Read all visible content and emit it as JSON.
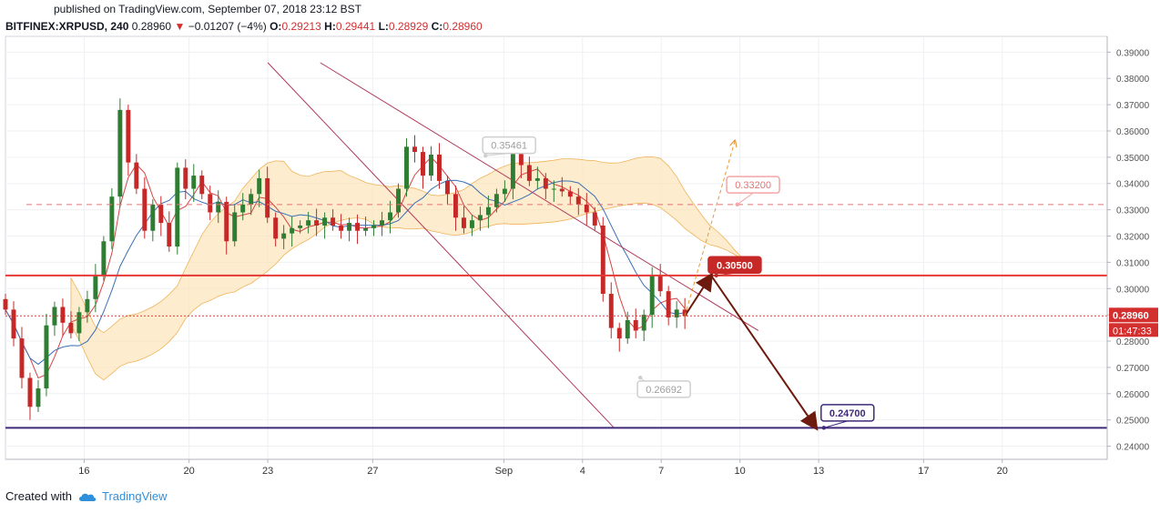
{
  "header": {
    "published": "published on TradingView.com, September 07, 2018 23:12 BST",
    "symbol": "BITFINEX:XRPUSD, 240",
    "last": "0.28960",
    "change": "−0.01207 (−4%)",
    "o_label": "O:",
    "o": "0.29213",
    "h_label": "H:",
    "h": "0.29441",
    "l_label": "L:",
    "l": "0.28929",
    "c_label": "C:",
    "c": "0.28960"
  },
  "footer": {
    "created_with": "Created with",
    "brand": "TradingView"
  },
  "colors": {
    "up": "#2e7d32",
    "down": "#c62828",
    "cloud": "#fce4b8",
    "red_line": "#e53935",
    "blue_line": "#3f2a7a",
    "arrow": "#6d1b0f",
    "channel": "#b03a5a"
  },
  "chart_data": {
    "type": "candlestick",
    "title": "BITFINEX:XRPUSD, 240",
    "ylim": [
      0.235,
      0.396
    ],
    "y_ticks": [
      "0.39000",
      "0.38000",
      "0.37000",
      "0.36000",
      "0.35000",
      "0.34000",
      "0.33000",
      "0.32000",
      "0.31000",
      "0.30000",
      "0.29000",
      "0.28000",
      "0.27000",
      "0.26000",
      "0.25000",
      "0.24000"
    ],
    "y_tick_values": [
      0.39,
      0.38,
      0.37,
      0.36,
      0.35,
      0.34,
      0.33,
      0.32,
      0.31,
      0.3,
      0.29,
      0.28,
      0.27,
      0.26,
      0.25,
      0.24
    ],
    "x_ticks": [
      "16",
      "20",
      "23",
      "27",
      "Sep",
      "4",
      "7",
      "10",
      "13",
      "17",
      "20"
    ],
    "x_tick_days": [
      16,
      20,
      23,
      27,
      32,
      35,
      38,
      41,
      44,
      48,
      51
    ],
    "day_range": [
      13.0,
      55.0
    ],
    "price_label": "0.28960",
    "countdown_label": "01:47:33",
    "levels": [
      {
        "name": "resistance",
        "value": 0.305,
        "label": "0.30500"
      },
      {
        "name": "support",
        "value": 0.247,
        "label": "0.24700"
      },
      {
        "name": "target",
        "value": 0.332,
        "label": "0.33200"
      },
      {
        "name": "current",
        "value": 0.2896,
        "label": "0.28960"
      }
    ],
    "annotations": [
      {
        "label": "0.35461",
        "day": 31.3,
        "value": 0.3546
      },
      {
        "label": "0.26692",
        "day": 37.2,
        "value": 0.2669
      }
    ],
    "projection_path": [
      [
        38.9,
        0.2896
      ],
      [
        39.9,
        0.305
      ],
      [
        43.9,
        0.247
      ]
    ],
    "alt_path": [
      [
        38.9,
        0.2896
      ],
      [
        40.8,
        0.356
      ]
    ],
    "channel_upper": [
      [
        25.0,
        0.386
      ],
      [
        41.7,
        0.284
      ]
    ],
    "channel_lower": [
      [
        23.0,
        0.386
      ],
      [
        36.2,
        0.247
      ]
    ],
    "close_series": [
      0.292,
      0.281,
      0.266,
      0.255,
      0.262,
      0.286,
      0.293,
      0.287,
      0.283,
      0.291,
      0.296,
      0.305,
      0.318,
      0.335,
      0.368,
      0.348,
      0.338,
      0.322,
      0.332,
      0.325,
      0.316,
      0.346,
      0.338,
      0.343,
      0.336,
      0.329,
      0.333,
      0.318,
      0.329,
      0.332,
      0.336,
      0.342,
      0.327,
      0.319,
      0.321,
      0.323,
      0.324,
      0.326,
      0.324,
      0.327,
      0.324,
      0.322,
      0.325,
      0.322,
      0.323,
      0.324,
      0.326,
      0.329,
      0.338,
      0.354,
      0.352,
      0.343,
      0.351,
      0.341,
      0.336,
      0.327,
      0.323,
      0.326,
      0.328,
      0.331,
      0.336,
      0.338,
      0.352,
      0.347,
      0.341,
      0.342,
      0.338,
      0.338,
      0.337,
      0.335,
      0.332,
      0.329,
      0.324,
      0.298,
      0.285,
      0.281,
      0.288,
      0.284,
      0.29,
      0.305,
      0.299,
      0.289,
      0.292,
      0.2896
    ],
    "candles_start_day": 13.0,
    "candles_end_day": 38.9,
    "indicator": "Ichimoku Cloud"
  }
}
